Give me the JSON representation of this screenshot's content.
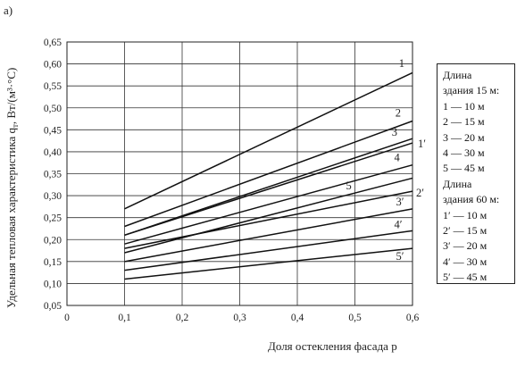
{
  "panel_label": "а)",
  "chart_data": {
    "type": "line",
    "xlabel": "Доля остекления фасада p",
    "ylabel": "Удельная тепловая характеристика q",
    "ylabel_sub": "т",
    "ylabel_tail": ", Вт/(м³·°С)",
    "xlim": [
      0,
      0.6
    ],
    "ylim": [
      0.05,
      0.65
    ],
    "x_ticks": [
      0,
      0.1,
      0.2,
      0.3,
      0.4,
      0.5,
      0.6
    ],
    "x_tick_labels": [
      "0",
      "0,1",
      "0,2",
      "0,3",
      "0,4",
      "0,5",
      "0,6"
    ],
    "y_ticks": [
      0.05,
      0.1,
      0.15,
      0.2,
      0.25,
      0.3,
      0.35,
      0.4,
      0.45,
      0.5,
      0.55,
      0.6,
      0.65
    ],
    "y_tick_labels": [
      "0,05",
      "0,10",
      "0,15",
      "0,20",
      "0,25",
      "0,30",
      "0,35",
      "0,40",
      "0,45",
      "0,50",
      "0,55",
      "0,60",
      "0,65"
    ],
    "grid": true,
    "series": [
      {
        "name": "1",
        "x": [
          0.1,
          0.6
        ],
        "y": [
          0.27,
          0.58
        ]
      },
      {
        "name": "2",
        "x": [
          0.1,
          0.6
        ],
        "y": [
          0.23,
          0.47
        ]
      },
      {
        "name": "3",
        "x": [
          0.1,
          0.6
        ],
        "y": [
          0.21,
          0.42
        ]
      },
      {
        "name": "1′",
        "x": [
          0.1,
          0.6
        ],
        "y": [
          0.21,
          0.43
        ]
      },
      {
        "name": "4",
        "x": [
          0.1,
          0.6
        ],
        "y": [
          0.19,
          0.37
        ]
      },
      {
        "name": "5",
        "x": [
          0.1,
          0.6
        ],
        "y": [
          0.17,
          0.34
        ]
      },
      {
        "name": "2′",
        "x": [
          0.1,
          0.6
        ],
        "y": [
          0.18,
          0.31
        ]
      },
      {
        "name": "3′",
        "x": [
          0.1,
          0.6
        ],
        "y": [
          0.15,
          0.27
        ]
      },
      {
        "name": "4′",
        "x": [
          0.1,
          0.6
        ],
        "y": [
          0.13,
          0.22
        ]
      },
      {
        "name": "5′",
        "x": [
          0.1,
          0.6
        ],
        "y": [
          0.11,
          0.18
        ]
      }
    ],
    "curve_labels": [
      "1",
      "2",
      "3",
      "1′",
      "4",
      "5",
      "2′",
      "3′",
      "4′",
      "5′"
    ],
    "legend": {
      "group1_title_line1": "Длина",
      "group1_title_line2": "здания 15 м:",
      "group1_items": [
        "1 — 10 м",
        "2 — 15 м",
        "3 — 20 м",
        "4 — 30 м",
        "5 — 45 м"
      ],
      "group2_title_line1": "Длина",
      "group2_title_line2": "здания 60 м:",
      "group2_items": [
        "1′ — 10 м",
        "2′ — 15 м",
        "3′ — 20 м",
        "4′ — 30 м",
        "5′ — 45 м"
      ]
    }
  }
}
